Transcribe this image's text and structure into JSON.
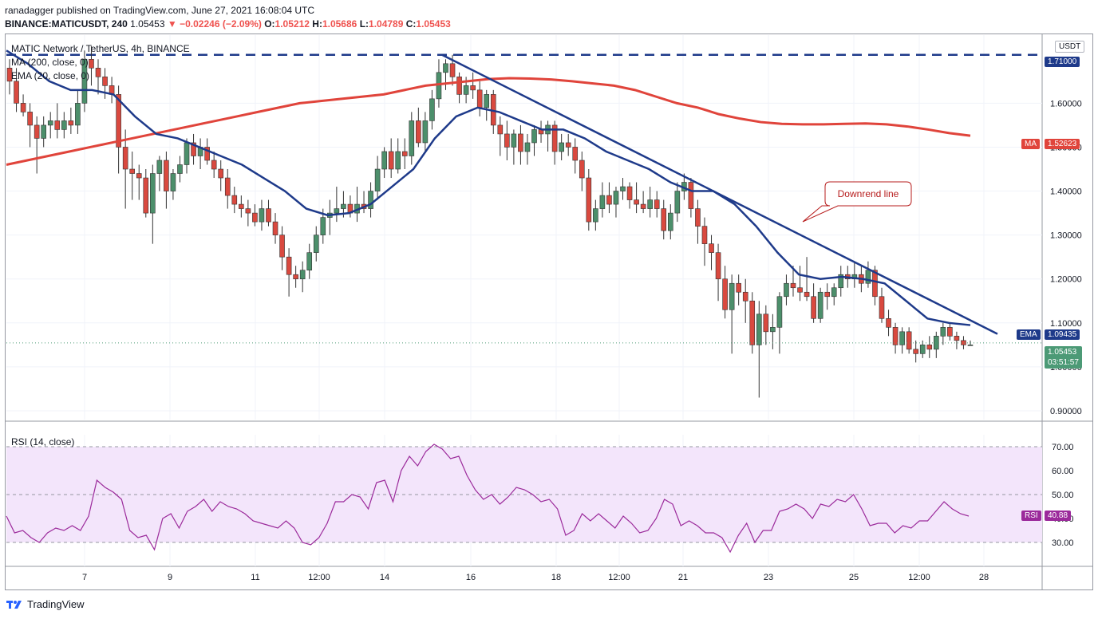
{
  "header": {
    "line1": "ranadagger published on TradingView.com, June 27, 2021 16:08:04 UTC",
    "symbol": "BINANCE:MATICUSDT, 240",
    "last": "1.05453",
    "change": "−0.02246 (−2.09%)",
    "o_label": "O:",
    "o": "1.05212",
    "h_label": "H:",
    "h": "1.05686",
    "l_label": "L:",
    "l": "1.04789",
    "c_label": "C:",
    "c": "1.05453"
  },
  "legend": {
    "title": "MATIC Network / TetherUS, 4h, BINANCE",
    "ma": "MA (200, close, 0)",
    "ema": "EMA (20, close, 0)",
    "rsi": "RSI (14, close)"
  },
  "annotation": {
    "text": "Downrend line"
  },
  "footer": {
    "brand": "TradingView"
  },
  "axis": {
    "currency": "USDT"
  },
  "price_labels": {
    "resistance": "1.71000",
    "ma": "MA",
    "ma_value": "1.52623",
    "ema": "EMA",
    "ema_value": "1.09435",
    "last": "1.05453",
    "countdown": "03:51:57",
    "rsi": "RSI",
    "rsi_value": "40.88"
  },
  "colors": {
    "up": "#4c8f6b",
    "down": "#d9493f",
    "ma": "#e0443b",
    "ema": "#1e3a8a",
    "trend": "#1e3a8a",
    "rsi": "#9b2a9b",
    "rsi_band": "#f3e5fb"
  },
  "chart_data": {
    "type": "candlestick",
    "title": "MATIC Network / TetherUS, 4h, BINANCE",
    "y_ticks": [
      "0.90000",
      "1.00000",
      "1.10000",
      "1.20000",
      "1.30000",
      "1.40000",
      "1.50000",
      "1.60000"
    ],
    "y_range": [
      0.88,
      1.755
    ],
    "x_ticks": [
      "7",
      "9",
      "11",
      "12:00",
      "14",
      "16",
      "18",
      "12:00",
      "21",
      "23",
      "25",
      "12:00",
      "28"
    ],
    "resistance_level": 1.71,
    "candles": [
      [
        1.68,
        1.7,
        1.62,
        1.65
      ],
      [
        1.65,
        1.68,
        1.58,
        1.6
      ],
      [
        1.6,
        1.62,
        1.57,
        1.58
      ],
      [
        1.58,
        1.6,
        1.5,
        1.55
      ],
      [
        1.55,
        1.57,
        1.44,
        1.52
      ],
      [
        1.52,
        1.57,
        1.5,
        1.55
      ],
      [
        1.55,
        1.58,
        1.52,
        1.56
      ],
      [
        1.56,
        1.6,
        1.52,
        1.54
      ],
      [
        1.54,
        1.58,
        1.52,
        1.56
      ],
      [
        1.56,
        1.59,
        1.53,
        1.55
      ],
      [
        1.55,
        1.63,
        1.53,
        1.6
      ],
      [
        1.6,
        1.72,
        1.58,
        1.7
      ],
      [
        1.7,
        1.73,
        1.64,
        1.68
      ],
      [
        1.68,
        1.7,
        1.62,
        1.66
      ],
      [
        1.66,
        1.68,
        1.61,
        1.64
      ],
      [
        1.64,
        1.66,
        1.6,
        1.62
      ],
      [
        1.62,
        1.64,
        1.44,
        1.5
      ],
      [
        1.5,
        1.54,
        1.36,
        1.45
      ],
      [
        1.45,
        1.49,
        1.38,
        1.44
      ],
      [
        1.44,
        1.46,
        1.38,
        1.43
      ],
      [
        1.43,
        1.45,
        1.34,
        1.35
      ],
      [
        1.35,
        1.46,
        1.28,
        1.44
      ],
      [
        1.44,
        1.48,
        1.4,
        1.47
      ],
      [
        1.47,
        1.49,
        1.36,
        1.4
      ],
      [
        1.4,
        1.45,
        1.38,
        1.44
      ],
      [
        1.44,
        1.48,
        1.42,
        1.46
      ],
      [
        1.46,
        1.52,
        1.44,
        1.51
      ],
      [
        1.51,
        1.53,
        1.46,
        1.48
      ],
      [
        1.48,
        1.52,
        1.45,
        1.5
      ],
      [
        1.5,
        1.52,
        1.46,
        1.47
      ],
      [
        1.47,
        1.49,
        1.43,
        1.45
      ],
      [
        1.45,
        1.47,
        1.4,
        1.43
      ],
      [
        1.43,
        1.45,
        1.36,
        1.39
      ],
      [
        1.39,
        1.41,
        1.35,
        1.37
      ],
      [
        1.37,
        1.39,
        1.34,
        1.36
      ],
      [
        1.36,
        1.38,
        1.32,
        1.35
      ],
      [
        1.35,
        1.37,
        1.32,
        1.33
      ],
      [
        1.33,
        1.38,
        1.31,
        1.36
      ],
      [
        1.36,
        1.38,
        1.32,
        1.33
      ],
      [
        1.33,
        1.35,
        1.28,
        1.3
      ],
      [
        1.3,
        1.32,
        1.22,
        1.25
      ],
      [
        1.25,
        1.27,
        1.16,
        1.21
      ],
      [
        1.21,
        1.23,
        1.18,
        1.2
      ],
      [
        1.2,
        1.24,
        1.17,
        1.22
      ],
      [
        1.22,
        1.28,
        1.2,
        1.26
      ],
      [
        1.26,
        1.32,
        1.24,
        1.3
      ],
      [
        1.3,
        1.36,
        1.28,
        1.34
      ],
      [
        1.34,
        1.38,
        1.3,
        1.35
      ],
      [
        1.35,
        1.41,
        1.33,
        1.36
      ],
      [
        1.36,
        1.4,
        1.34,
        1.37
      ],
      [
        1.37,
        1.39,
        1.34,
        1.35
      ],
      [
        1.35,
        1.41,
        1.33,
        1.37
      ],
      [
        1.37,
        1.4,
        1.35,
        1.36
      ],
      [
        1.36,
        1.42,
        1.34,
        1.4
      ],
      [
        1.4,
        1.48,
        1.38,
        1.45
      ],
      [
        1.45,
        1.5,
        1.43,
        1.49
      ],
      [
        1.49,
        1.52,
        1.43,
        1.45
      ],
      [
        1.45,
        1.52,
        1.44,
        1.49
      ],
      [
        1.49,
        1.52,
        1.45,
        1.48
      ],
      [
        1.48,
        1.58,
        1.46,
        1.56
      ],
      [
        1.56,
        1.59,
        1.5,
        1.51
      ],
      [
        1.51,
        1.58,
        1.49,
        1.56
      ],
      [
        1.56,
        1.63,
        1.54,
        1.61
      ],
      [
        1.61,
        1.7,
        1.59,
        1.67
      ],
      [
        1.67,
        1.7,
        1.63,
        1.69
      ],
      [
        1.69,
        1.71,
        1.64,
        1.66
      ],
      [
        1.66,
        1.67,
        1.6,
        1.62
      ],
      [
        1.62,
        1.66,
        1.6,
        1.64
      ],
      [
        1.64,
        1.67,
        1.61,
        1.63
      ],
      [
        1.63,
        1.65,
        1.57,
        1.59
      ],
      [
        1.59,
        1.63,
        1.56,
        1.62
      ],
      [
        1.62,
        1.63,
        1.53,
        1.55
      ],
      [
        1.55,
        1.57,
        1.48,
        1.53
      ],
      [
        1.53,
        1.56,
        1.47,
        1.5
      ],
      [
        1.5,
        1.54,
        1.46,
        1.53
      ],
      [
        1.53,
        1.55,
        1.46,
        1.49
      ],
      [
        1.49,
        1.53,
        1.46,
        1.51
      ],
      [
        1.51,
        1.55,
        1.48,
        1.54
      ],
      [
        1.54,
        1.56,
        1.51,
        1.53
      ],
      [
        1.53,
        1.56,
        1.49,
        1.55
      ],
      [
        1.55,
        1.56,
        1.46,
        1.49
      ],
      [
        1.49,
        1.53,
        1.47,
        1.51
      ],
      [
        1.51,
        1.53,
        1.48,
        1.5
      ],
      [
        1.5,
        1.52,
        1.44,
        1.47
      ],
      [
        1.47,
        1.49,
        1.4,
        1.43
      ],
      [
        1.43,
        1.45,
        1.31,
        1.33
      ],
      [
        1.33,
        1.38,
        1.31,
        1.36
      ],
      [
        1.36,
        1.42,
        1.34,
        1.39
      ],
      [
        1.39,
        1.42,
        1.35,
        1.37
      ],
      [
        1.37,
        1.41,
        1.34,
        1.4
      ],
      [
        1.4,
        1.43,
        1.38,
        1.41
      ],
      [
        1.41,
        1.42,
        1.36,
        1.38
      ],
      [
        1.38,
        1.42,
        1.35,
        1.37
      ],
      [
        1.37,
        1.4,
        1.35,
        1.36
      ],
      [
        1.36,
        1.41,
        1.34,
        1.38
      ],
      [
        1.38,
        1.4,
        1.34,
        1.36
      ],
      [
        1.36,
        1.38,
        1.29,
        1.31
      ],
      [
        1.31,
        1.37,
        1.29,
        1.35
      ],
      [
        1.35,
        1.42,
        1.33,
        1.4
      ],
      [
        1.4,
        1.44,
        1.38,
        1.42
      ],
      [
        1.42,
        1.43,
        1.34,
        1.36
      ],
      [
        1.36,
        1.38,
        1.28,
        1.32
      ],
      [
        1.32,
        1.34,
        1.23,
        1.28
      ],
      [
        1.28,
        1.3,
        1.22,
        1.26
      ],
      [
        1.26,
        1.28,
        1.15,
        1.2
      ],
      [
        1.2,
        1.23,
        1.11,
        1.13
      ],
      [
        1.13,
        1.21,
        1.03,
        1.19
      ],
      [
        1.19,
        1.21,
        1.14,
        1.17
      ],
      [
        1.17,
        1.2,
        1.1,
        1.15
      ],
      [
        1.15,
        1.17,
        1.03,
        1.05
      ],
      [
        1.05,
        1.15,
        0.93,
        1.12
      ],
      [
        1.12,
        1.14,
        1.05,
        1.08
      ],
      [
        1.08,
        1.12,
        1.04,
        1.09
      ],
      [
        1.09,
        1.17,
        1.03,
        1.16
      ],
      [
        1.16,
        1.21,
        1.14,
        1.19
      ],
      [
        1.19,
        1.23,
        1.16,
        1.18
      ],
      [
        1.18,
        1.23,
        1.15,
        1.17
      ],
      [
        1.17,
        1.25,
        1.15,
        1.16
      ],
      [
        1.16,
        1.19,
        1.1,
        1.11
      ],
      [
        1.11,
        1.18,
        1.1,
        1.17
      ],
      [
        1.17,
        1.19,
        1.13,
        1.16
      ],
      [
        1.16,
        1.19,
        1.14,
        1.18
      ],
      [
        1.18,
        1.23,
        1.16,
        1.21
      ],
      [
        1.21,
        1.23,
        1.18,
        1.2
      ],
      [
        1.2,
        1.24,
        1.18,
        1.21
      ],
      [
        1.21,
        1.23,
        1.17,
        1.19
      ],
      [
        1.19,
        1.24,
        1.18,
        1.22
      ],
      [
        1.22,
        1.23,
        1.14,
        1.16
      ],
      [
        1.16,
        1.18,
        1.1,
        1.11
      ],
      [
        1.11,
        1.13,
        1.07,
        1.09
      ],
      [
        1.09,
        1.1,
        1.03,
        1.05
      ],
      [
        1.05,
        1.09,
        1.03,
        1.08
      ],
      [
        1.08,
        1.09,
        1.03,
        1.04
      ],
      [
        1.04,
        1.06,
        1.01,
        1.03
      ],
      [
        1.03,
        1.06,
        1.02,
        1.05
      ],
      [
        1.05,
        1.07,
        1.02,
        1.04
      ],
      [
        1.04,
        1.08,
        1.02,
        1.07
      ],
      [
        1.07,
        1.1,
        1.05,
        1.09
      ],
      [
        1.09,
        1.1,
        1.06,
        1.07
      ],
      [
        1.07,
        1.08,
        1.04,
        1.06
      ],
      [
        1.06,
        1.07,
        1.04,
        1.05
      ],
      [
        1.05,
        1.06,
        1.05,
        1.05
      ]
    ],
    "ma200": [
      1.46,
      1.47,
      1.48,
      1.49,
      1.5,
      1.51,
      1.52,
      1.53,
      1.54,
      1.55,
      1.56,
      1.57,
      1.58,
      1.59,
      1.6,
      1.605,
      1.61,
      1.615,
      1.62,
      1.63,
      1.64,
      1.645,
      1.65,
      1.655,
      1.657,
      1.656,
      1.654,
      1.65,
      1.645,
      1.64,
      1.63,
      1.615,
      1.6,
      1.59,
      1.575,
      1.565,
      1.557,
      1.553,
      1.552,
      1.552,
      1.553,
      1.554,
      1.552,
      1.547,
      1.54,
      1.532,
      1.526
    ],
    "ema20": [
      1.72,
      1.69,
      1.65,
      1.63,
      1.63,
      1.62,
      1.57,
      1.53,
      1.52,
      1.5,
      1.48,
      1.46,
      1.43,
      1.4,
      1.36,
      1.345,
      1.35,
      1.37,
      1.41,
      1.45,
      1.52,
      1.57,
      1.59,
      1.58,
      1.56,
      1.54,
      1.54,
      1.52,
      1.49,
      1.47,
      1.45,
      1.42,
      1.4,
      1.4,
      1.37,
      1.32,
      1.26,
      1.21,
      1.2,
      1.205,
      1.2,
      1.19,
      1.15,
      1.11,
      1.1,
      1.095
    ],
    "trendline": [
      [
        1.71,
        "start"
      ],
      [
        1.07,
        "end"
      ]
    ],
    "rsi": {
      "label": "RSI (14, close)",
      "levels": [
        30,
        50,
        70
      ],
      "y_ticks": [
        "30.00",
        "40.00",
        "50.00",
        "60.00",
        "70.00"
      ],
      "values": [
        41,
        34,
        35,
        32,
        30,
        34,
        36,
        35,
        37,
        35,
        41,
        56,
        53,
        51,
        48,
        35,
        32,
        33,
        27,
        40,
        42,
        36,
        43,
        45,
        48,
        43,
        47,
        45,
        44,
        42,
        39,
        38,
        37,
        36,
        39,
        36,
        30,
        29,
        32,
        38,
        47,
        47,
        50,
        49,
        44,
        55,
        56,
        47,
        60,
        66,
        62,
        68,
        71,
        69,
        65,
        66,
        58,
        52,
        48,
        50,
        46,
        49,
        53,
        52,
        50,
        47,
        48,
        44,
        33,
        35,
        42,
        39,
        42,
        39,
        36,
        41,
        38,
        34,
        35,
        40,
        48,
        46,
        37,
        39,
        37,
        34,
        34,
        32,
        26,
        33,
        38,
        30,
        35,
        35,
        43,
        44,
        46,
        44,
        40,
        46,
        45,
        48,
        47,
        50,
        44,
        37,
        38,
        38,
        34,
        37,
        36,
        39,
        39,
        43,
        47,
        44,
        42,
        41
      ]
    },
    "grid": true
  }
}
